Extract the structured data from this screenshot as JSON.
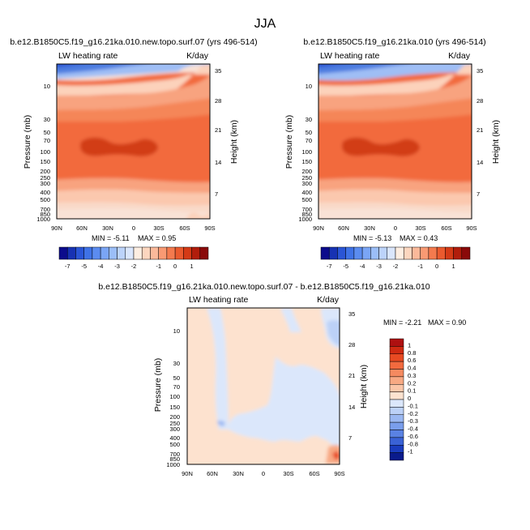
{
  "figure": {
    "title": "JJA"
  },
  "chart_data": [
    {
      "type": "heatmap",
      "title": "b.e12.B1850C5.f19_g16.21ka.010.new.topo.surf.07 (yrs 496-514)",
      "left_label": "LW heating rate",
      "units": "K/day",
      "xlabel": "",
      "ylabel": "Pressure (mb)",
      "ylabel_right": "Height (km)",
      "x_ticks": [
        "90N",
        "60N",
        "30N",
        "0",
        "30S",
        "60S",
        "90S"
      ],
      "y_ticks": [
        "10",
        "30",
        "50",
        "70",
        "100",
        "150",
        "200",
        "250",
        "300",
        "400",
        "500",
        "700",
        "850",
        "1000"
      ],
      "y_right_ticks": [
        "35",
        "28",
        "21",
        "14",
        "7"
      ],
      "min_label": "MIN = -5.11",
      "max_label": "MAX = 0.95",
      "min": -5.11,
      "max": 0.95
    },
    {
      "type": "heatmap",
      "title": "b.e12.B1850C5.f19_g16.21ka.010 (yrs 496-514)",
      "left_label": "LW heating rate",
      "units": "K/day",
      "xlabel": "",
      "ylabel": "Pressure (mb)",
      "ylabel_right": "Height (km)",
      "x_ticks": [
        "90N",
        "60N",
        "30N",
        "0",
        "30S",
        "60S",
        "90S"
      ],
      "y_ticks": [
        "10",
        "30",
        "50",
        "70",
        "100",
        "150",
        "200",
        "250",
        "300",
        "400",
        "500",
        "700",
        "850",
        "1000"
      ],
      "y_right_ticks": [
        "35",
        "28",
        "21",
        "14",
        "7"
      ],
      "min_label": "MIN = -5.13",
      "max_label": "MAX = 0.43",
      "min": -5.13,
      "max": 0.43
    },
    {
      "type": "heatmap",
      "title": "b.e12.B1850C5.f19_g16.21ka.010.new.topo.surf.07 - b.e12.B1850C5.f19_g16.21ka.010",
      "left_label": "LW heating rate",
      "units": "K/day",
      "xlabel": "",
      "ylabel": "Pressure (mb)",
      "ylabel_right": "Height (km)",
      "x_ticks": [
        "90N",
        "60N",
        "30N",
        "0",
        "30S",
        "60S",
        "90S"
      ],
      "y_ticks": [
        "10",
        "30",
        "50",
        "70",
        "100",
        "150",
        "200",
        "250",
        "300",
        "400",
        "500",
        "700",
        "850",
        "1000"
      ],
      "y_right_ticks": [
        "35",
        "28",
        "21",
        "14",
        "7"
      ],
      "min_label": "MIN =  -2.21",
      "max_label": "MAX =  0.90",
      "min": -2.21,
      "max": 0.9
    }
  ],
  "colorbars": {
    "absolute": {
      "labels": [
        "-7",
        "-5",
        "-4",
        "-3",
        "-2",
        "-1",
        "0",
        "1"
      ],
      "colors": [
        "#0c0c8c",
        "#1732b3",
        "#2a55d6",
        "#3f72e6",
        "#5b8cf0",
        "#7aa5f5",
        "#9bbef8",
        "#bcd3fa",
        "#dae6fc",
        "#fdeee2",
        "#fcd6bf",
        "#fbb99a",
        "#f99a73",
        "#f47a4e",
        "#ea5a2e",
        "#d43a16",
        "#b11d0c",
        "#8a0a0a"
      ]
    },
    "difference": {
      "labels": [
        "1",
        "0.8",
        "0.6",
        "0.4",
        "0.3",
        "0.2",
        "0.1",
        "0",
        "-0.1",
        "-0.2",
        "-0.3",
        "-0.4",
        "-0.6",
        "-0.8",
        "-1"
      ],
      "colors": [
        "#ae1010",
        "#cf2a12",
        "#e84a22",
        "#f26a3e",
        "#f58a60",
        "#f8a983",
        "#fbc6a8",
        "#fde2cf",
        "#dbe7fb",
        "#bcd1f7",
        "#9bb8f2",
        "#7a9eec",
        "#5a82e3",
        "#3a62d6",
        "#1a3cbe",
        "#0a1b8c"
      ]
    }
  }
}
